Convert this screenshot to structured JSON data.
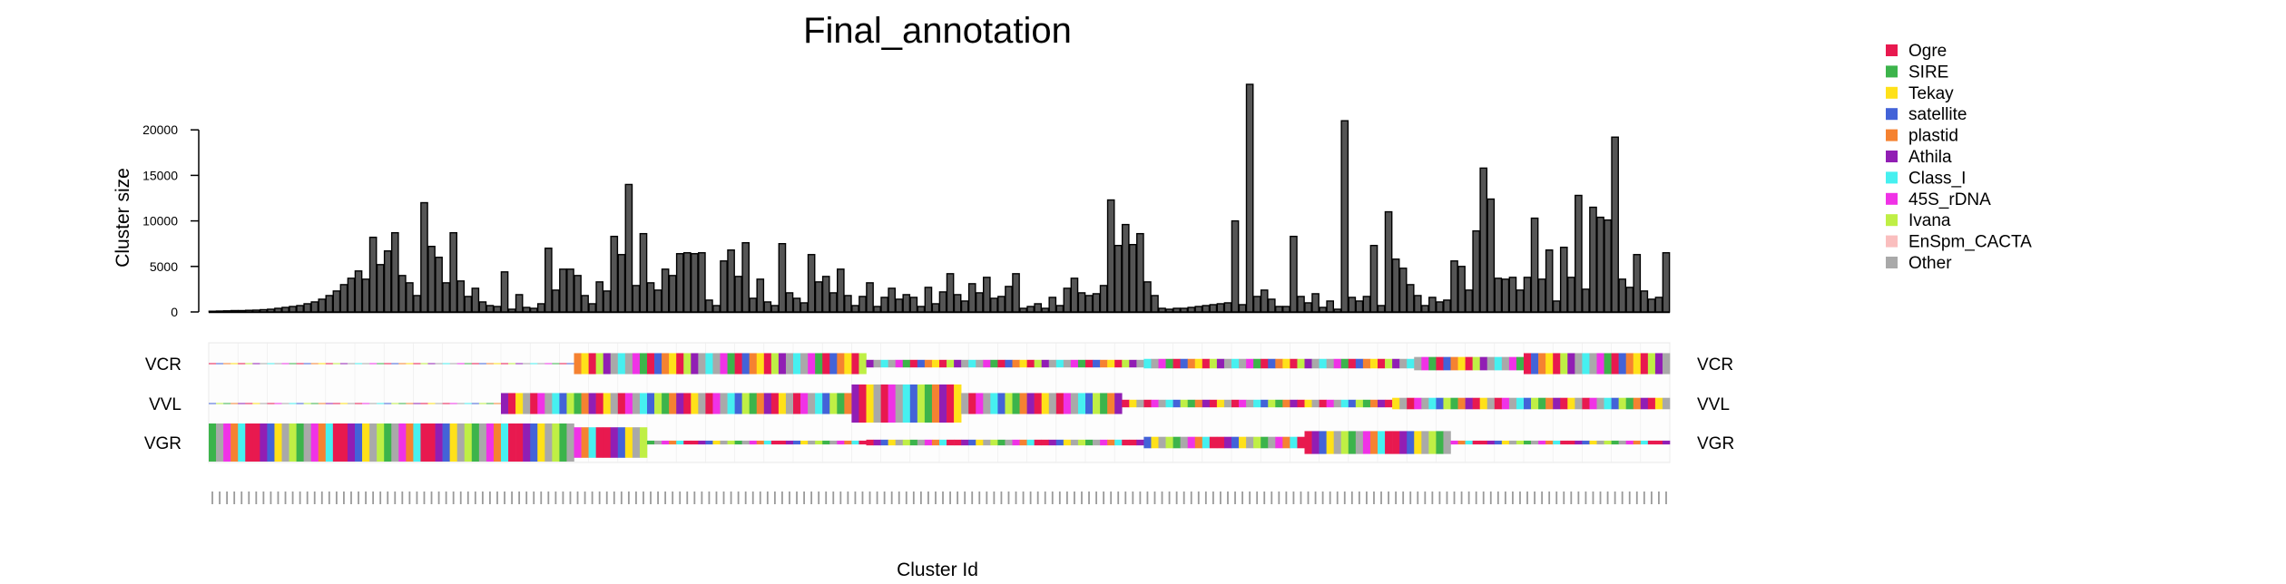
{
  "chart_data": {
    "type": "bar",
    "title": "Final_annotation",
    "xlabel": "Cluster Id",
    "ylabel": "Cluster size",
    "y_ticks": [
      0,
      5000,
      10000,
      15000,
      20000
    ],
    "ylim": [
      0,
      25000
    ],
    "grid": false,
    "legend_position": "top-right",
    "n_clusters": 200,
    "bar_sizes": [
      50,
      100,
      120,
      150,
      150,
      180,
      200,
      250,
      300,
      400,
      500,
      600,
      700,
      900,
      1100,
      1400,
      1800,
      2300,
      3000,
      3700,
      4500,
      3600,
      8200,
      5200,
      6700,
      8700,
      4000,
      3200,
      1800,
      12000,
      7200,
      6000,
      3200,
      8700,
      3400,
      1700,
      2600,
      1100,
      700,
      600,
      4400,
      300,
      1900,
      500,
      400,
      900,
      7000,
      2400,
      4700,
      4700,
      4000,
      1800,
      900,
      3300,
      2300,
      8300,
      6300,
      14000,
      2900,
      8600,
      3200,
      2400,
      4700,
      4000,
      6400,
      6500,
      6400,
      6500,
      1300,
      700,
      5600,
      6800,
      3900,
      7600,
      1500,
      3600,
      1100,
      700,
      7500,
      2100,
      1500,
      1000,
      6300,
      3300,
      3900,
      2100,
      4700,
      1800,
      700,
      1700,
      3200,
      600,
      1600,
      2600,
      1400,
      1900,
      1600,
      600,
      2700,
      900,
      2200,
      4200,
      1900,
      1200,
      3100,
      2100,
      3800,
      1500,
      1700,
      2800,
      4200,
      400,
      600,
      900,
      400,
      1600,
      700,
      2600,
      3700,
      2100,
      1800,
      2000,
      2900,
      12300,
      7300,
      9600,
      7400,
      8600,
      3300,
      1800,
      400,
      300,
      400,
      400,
      500,
      600,
      700,
      800,
      900,
      1000,
      10000,
      800,
      25000,
      1700,
      2400,
      1400,
      600,
      600,
      8300,
      1700,
      1000,
      2000,
      500,
      1200,
      300,
      21000,
      1600,
      1200,
      1700,
      7300,
      700,
      11000,
      5800,
      4800,
      3000,
      1800,
      700,
      1600,
      1100,
      1300,
      5600,
      5000,
      2400,
      8900,
      15800,
      12400,
      3700,
      3600,
      3800,
      2400,
      3800,
      10300,
      3600,
      6800,
      1200,
      7100,
      3800,
      12800,
      2500,
      11500,
      10400,
      10100,
      19200,
      3600,
      2700,
      6300,
      2300,
      1400,
      1600,
      6500
    ],
    "tracks": [
      "VCR",
      "VVL",
      "VGR"
    ],
    "legend": [
      {
        "name": "Ogre",
        "color": "#e8194f"
      },
      {
        "name": "SIRE",
        "color": "#3cb44b"
      },
      {
        "name": "Tekay",
        "color": "#ffe119"
      },
      {
        "name": "satellite",
        "color": "#4363d8"
      },
      {
        "name": "plastid",
        "color": "#f58231"
      },
      {
        "name": "Athila",
        "color": "#911eb4"
      },
      {
        "name": "Class_I",
        "color": "#46f0f0"
      },
      {
        "name": "45S_rDNA",
        "color": "#f032e6"
      },
      {
        "name": "Ivana",
        "color": "#bfef45"
      },
      {
        "name": "EnSpm_CACTA",
        "color": "#fabebe"
      },
      {
        "name": "Other",
        "color": "#a9a9a9"
      }
    ]
  }
}
